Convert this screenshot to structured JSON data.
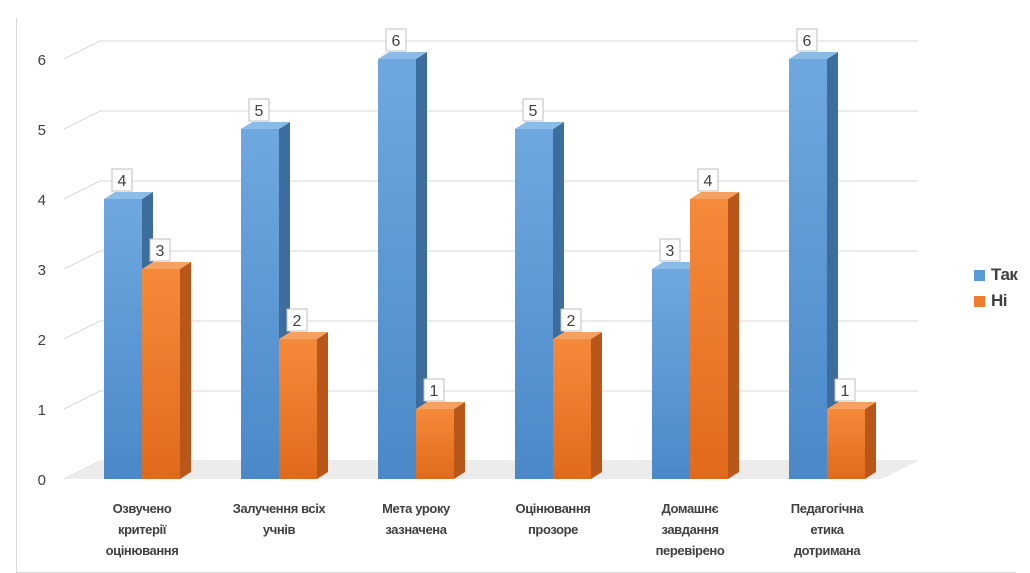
{
  "chart_data": {
    "type": "bar",
    "categories": [
      [
        "Озвучено",
        "критерії",
        "оцінювання"
      ],
      [
        "Залучення всіх",
        "учнів"
      ],
      [
        "Мета уроку",
        "зазначена"
      ],
      [
        "Оцінювання",
        "прозоре"
      ],
      [
        "Домашнє",
        "завдання",
        "перевірено"
      ],
      [
        "Педагогічна",
        "етика",
        "дотримана"
      ]
    ],
    "series": [
      {
        "name": "Так",
        "values": [
          4,
          5,
          6,
          5,
          3,
          6
        ],
        "color": "#5b9bd5"
      },
      {
        "name": "Ні",
        "values": [
          3,
          2,
          1,
          2,
          4,
          1
        ],
        "color": "#ed7d31"
      }
    ],
    "yticks": [
      "0",
      "1",
      "2",
      "3",
      "4",
      "5",
      "6"
    ],
    "ylim": [
      0,
      6
    ],
    "grid": true,
    "legend_position": "right",
    "style": "3d-clustered-columns"
  }
}
